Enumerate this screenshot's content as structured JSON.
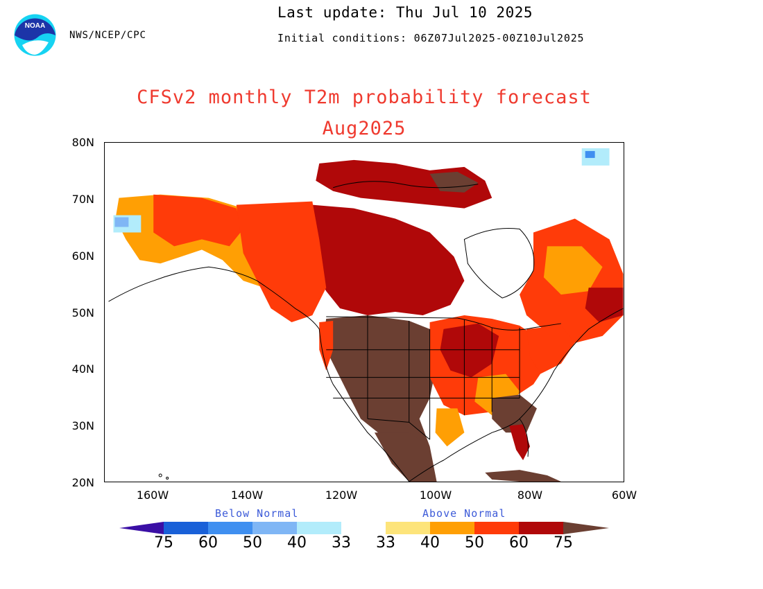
{
  "header": {
    "last_update": "Last update: Thu Jul 10 2025",
    "initial_conditions": "Initial conditions: 06Z07Jul2025-00Z10Jul2025",
    "agency": "NWS/NCEP/CPC",
    "logo_text": "NOAA"
  },
  "title": {
    "line1": "CFSv2 monthly T2m probability forecast",
    "line2": "Aug2025"
  },
  "map": {
    "lat_labels": [
      "80N",
      "70N",
      "60N",
      "50N",
      "40N",
      "30N",
      "20N"
    ],
    "lon_labels": [
      "160W",
      "140W",
      "120W",
      "100W",
      "80W",
      "60W"
    ],
    "lat_range": [
      20,
      80
    ],
    "lon_range": [
      -170,
      -60
    ]
  },
  "legend": {
    "below_label": "Below Normal",
    "above_label": "Above Normal",
    "values": [
      "75",
      "60",
      "50",
      "40",
      "33",
      "33",
      "40",
      "50",
      "60",
      "75"
    ],
    "colors": {
      "below": [
        "#3a0fa5",
        "#1960d8",
        "#3f8ff0",
        "#7fb6f5",
        "#b2ecfb"
      ],
      "near_normal": "#ffffff",
      "above": [
        "#fde47a",
        "#ff9f04",
        "#ff3b09",
        "#b00809",
        "#6b3f32"
      ]
    }
  }
}
